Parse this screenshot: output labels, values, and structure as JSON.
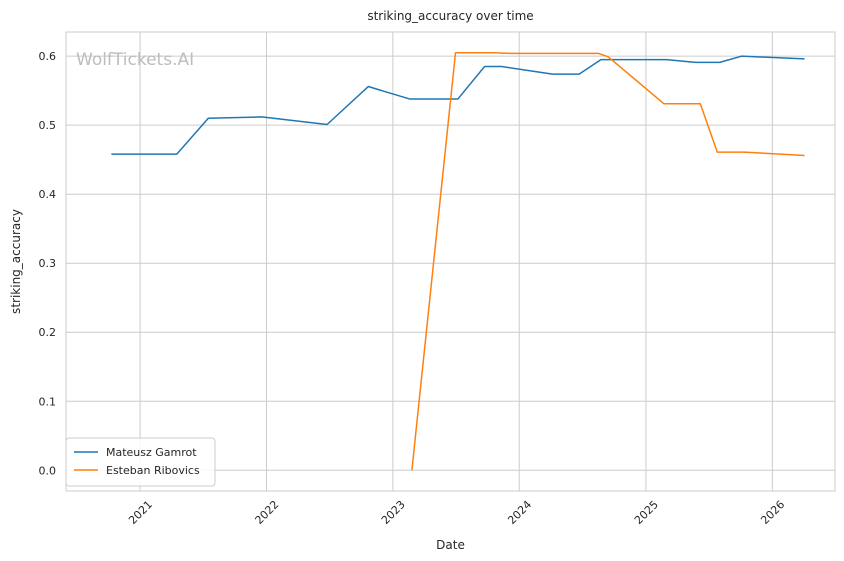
{
  "chart_data": {
    "type": "line",
    "title": "striking_accuracy over time",
    "xlabel": "Date",
    "ylabel": "striking_accuracy",
    "watermark": "WolfTickets.AI",
    "xlim": [
      "2020-06-01",
      "2026-07-01"
    ],
    "ylim": [
      -0.03,
      0.635
    ],
    "x_ticks": [
      "2021-01-01",
      "2022-01-01",
      "2023-01-01",
      "2024-01-01",
      "2025-01-01",
      "2026-01-01"
    ],
    "x_tick_labels": [
      "2021",
      "2022",
      "2023",
      "2024",
      "2025",
      "2026"
    ],
    "y_ticks": [
      0.0,
      0.1,
      0.2,
      0.3,
      0.4,
      0.5,
      0.6
    ],
    "y_tick_labels": [
      "0.0",
      "0.1",
      "0.2",
      "0.3",
      "0.4",
      "0.5",
      "0.6"
    ],
    "grid": true,
    "legend_position": "lower-left",
    "series": [
      {
        "name": "Mateusz Gamrot",
        "color": "#1f77b4",
        "points": [
          [
            "2020-10-10",
            0.458
          ],
          [
            "2021-04-17",
            0.458
          ],
          [
            "2021-07-17",
            0.51
          ],
          [
            "2021-12-18",
            0.512
          ],
          [
            "2022-06-25",
            0.501
          ],
          [
            "2022-10-22",
            0.556
          ],
          [
            "2023-02-18",
            0.538
          ],
          [
            "2023-07-08",
            0.538
          ],
          [
            "2023-09-23",
            0.585
          ],
          [
            "2023-11-11",
            0.585
          ],
          [
            "2024-04-06",
            0.574
          ],
          [
            "2024-06-22",
            0.574
          ],
          [
            "2024-08-24",
            0.595
          ],
          [
            "2025-03-01",
            0.595
          ],
          [
            "2025-05-24",
            0.591
          ],
          [
            "2025-08-02",
            0.591
          ],
          [
            "2025-10-04",
            0.6
          ],
          [
            "2026-04-04",
            0.596
          ]
        ]
      },
      {
        "name": "Esteban Ribovics",
        "color": "#ff7f0e",
        "points": [
          [
            "2023-02-25",
            0.0
          ],
          [
            "2023-07-01",
            0.605
          ],
          [
            "2023-10-21",
            0.605
          ],
          [
            "2023-12-02",
            0.604
          ],
          [
            "2024-08-17",
            0.604
          ],
          [
            "2024-09-14",
            0.599
          ],
          [
            "2025-02-22",
            0.531
          ],
          [
            "2025-06-07",
            0.531
          ],
          [
            "2025-07-26",
            0.461
          ],
          [
            "2025-10-11",
            0.461
          ],
          [
            "2026-04-04",
            0.456
          ]
        ]
      }
    ]
  }
}
